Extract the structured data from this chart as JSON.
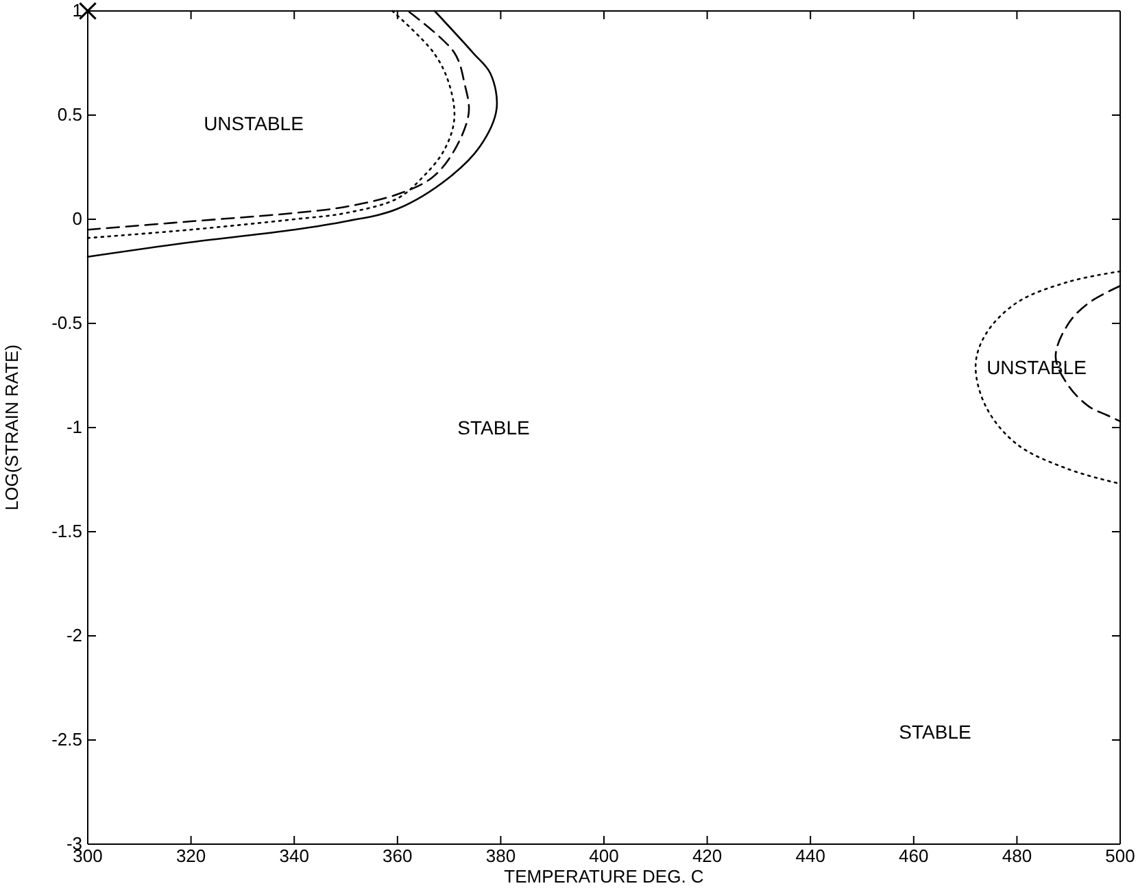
{
  "chart_data": {
    "type": "line",
    "xlabel": "TEMPERATURE DEG. C",
    "ylabel": "LOG(STRAIN RATE)",
    "xlim": [
      300,
      500
    ],
    "xticks": [
      300,
      320,
      340,
      360,
      380,
      400,
      420,
      440,
      460,
      480,
      500
    ],
    "ylim": [
      -3,
      1
    ],
    "yticks": [
      -3,
      -2.5,
      -2,
      -1.5,
      -1,
      -0.5,
      0,
      0.5,
      1
    ],
    "grid": false,
    "series": [
      {
        "color": "#000000",
        "line_style": "solid",
        "x": [
          300,
          320,
          340,
          350,
          360,
          370,
          376,
          379.2,
          378,
          374.6,
          367.2
        ],
        "values": [
          -0.18,
          -0.11,
          -0.05,
          -0.01,
          0.05,
          0.2,
          0.35,
          0.53,
          0.7,
          0.8,
          1
        ]
      },
      {
        "color": "#000000",
        "line_style": "dashed",
        "x": [
          300,
          320,
          340,
          350,
          360,
          366.7,
          371,
          373.8,
          373,
          371,
          362
        ],
        "values": [
          -0.05,
          -0.01,
          0.03,
          0.06,
          0.12,
          0.2,
          0.33,
          0.51,
          0.65,
          0.8,
          1
        ]
      },
      {
        "color": "#000000",
        "line_style": "dotted",
        "x": [
          300,
          320,
          340,
          350,
          360,
          364.8,
          369,
          371,
          370,
          367,
          359
        ],
        "values": [
          -0.09,
          -0.05,
          0,
          0.03,
          0.1,
          0.2,
          0.33,
          0.48,
          0.65,
          0.8,
          1
        ]
      },
      {
        "color": "#000000",
        "line_style": "dotted",
        "x": [
          500,
          490,
          480,
          474,
          472,
          474,
          480,
          490,
          500
        ],
        "values": [
          -0.25,
          -0.3,
          -0.4,
          -0.55,
          -0.7,
          -0.9,
          -1.08,
          -1.2,
          -1.27
        ]
      },
      {
        "color": "#000000",
        "line_style": "dashed",
        "x": [
          500,
          494,
          490,
          487.5,
          490,
          494,
          497.4,
          500
        ],
        "values": [
          -0.32,
          -0.4,
          -0.5,
          -0.66,
          -0.8,
          -0.9,
          -0.94,
          -0.97
        ]
      },
      {
        "type": "scatter",
        "color": "#000000",
        "marker": "cross",
        "x": [
          300
        ],
        "values": [
          1
        ]
      }
    ],
    "annotations": [
      "UNSTABLE",
      "STABLE",
      "UNSTABLE",
      "STABLE"
    ]
  }
}
